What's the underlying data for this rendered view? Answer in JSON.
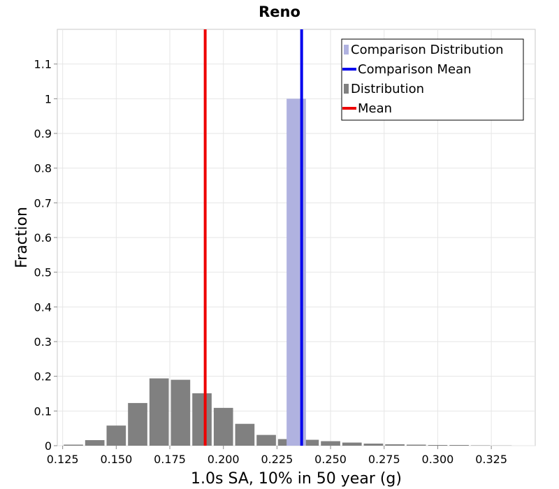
{
  "chart_data": {
    "type": "bar",
    "title": "Reno",
    "xlabel": "1.0s SA, 10% in 50 year (g)",
    "ylabel": "Fraction",
    "xlim": [
      0.1225,
      0.3455
    ],
    "ylim": [
      0,
      1.2
    ],
    "x_ticks": [
      "0.125",
      "0.150",
      "0.175",
      "0.200",
      "0.225",
      "0.250",
      "0.275",
      "0.300",
      "0.325"
    ],
    "y_ticks": [
      "0",
      "0.1",
      "0.2",
      "0.3",
      "0.4",
      "0.5",
      "0.6",
      "0.7",
      "0.8",
      "0.9",
      "1",
      "1.1"
    ],
    "grid": true,
    "bin_width": 0.01,
    "series": [
      {
        "name": "Distribution",
        "color": "#808080",
        "x": [
          0.13,
          0.14,
          0.15,
          0.16,
          0.17,
          0.18,
          0.19,
          0.2,
          0.21,
          0.22,
          0.23,
          0.24,
          0.25,
          0.26,
          0.27,
          0.28,
          0.29,
          0.3,
          0.31,
          0.32,
          0.33
        ],
        "values": [
          0.003,
          0.016,
          0.058,
          0.123,
          0.194,
          0.19,
          0.151,
          0.109,
          0.063,
          0.031,
          0.019,
          0.017,
          0.013,
          0.009,
          0.006,
          0.004,
          0.003,
          0.002,
          0.002,
          0.001,
          0.0005
        ]
      },
      {
        "name": "Comparison Distribution",
        "color": "#b0b2e0",
        "x": [
          0.234
        ],
        "values": [
          1.0
        ]
      }
    ],
    "lines": [
      {
        "name": "Comparison Mean",
        "x": 0.2365,
        "color": "#0000ee"
      },
      {
        "name": "Mean",
        "x": 0.1915,
        "color": "#ee0000"
      }
    ],
    "legend": {
      "position": "top-right",
      "items": [
        {
          "label": "Comparison Distribution",
          "kind": "bar",
          "color": "#b0b2e0"
        },
        {
          "label": "Comparison Mean",
          "kind": "line",
          "color": "#0000ee"
        },
        {
          "label": "Distribution",
          "kind": "bar",
          "color": "#808080"
        },
        {
          "label": "Mean",
          "kind": "line",
          "color": "#ee0000"
        }
      ]
    }
  }
}
